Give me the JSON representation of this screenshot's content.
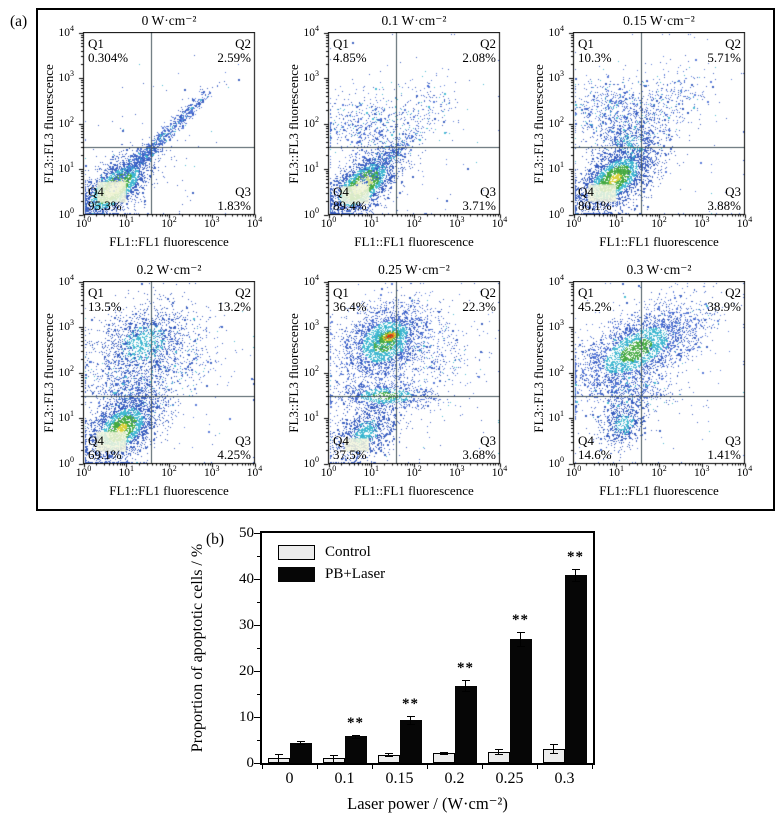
{
  "figure": {
    "panel_a_label": "(a)",
    "panel_b_label": "(b)"
  },
  "flow_axis": {
    "tick_exponents": [
      0,
      1,
      2,
      3,
      4
    ]
  },
  "colors": {
    "dot_blue": "#2f55bd",
    "dot_blue2": "#4e71d6",
    "dot_cyan": "#3ab6cf",
    "dot_green": "#43a83e",
    "dot_yellow": "#d9cf35",
    "dot_orange": "#e4821f",
    "dot_red": "#d63415",
    "core_pale": "#f2f5da",
    "core_pale_ring": "#cfe08c",
    "hotspot_fill": "#f3f6dd",
    "gate_line": "#46565e",
    "axis": "#000000",
    "bar_control": "#ececec",
    "bar_pb_laser": "#060606"
  },
  "chart_data": [
    {
      "type": "scatter",
      "title": "0 W·cm⁻²",
      "xlabel": "FL1::FL1 fluorescence",
      "ylabel": "FL3::FL3 fluorescence",
      "x_scale": "log",
      "y_scale": "log",
      "xlim": [
        1,
        10000
      ],
      "ylim": [
        1,
        10000
      ],
      "quadrant_gate": {
        "x": 38,
        "y": 30
      },
      "labels": [
        {
          "name": "Q1",
          "pct": "0.304%"
        },
        {
          "name": "Q2",
          "pct": "2.59%"
        },
        {
          "name": "Q3",
          "pct": "1.83%"
        },
        {
          "name": "Q4",
          "pct": "95.3%"
        }
      ],
      "density_clusters": [
        {
          "cx": 0.72,
          "cy": 0.6,
          "sx": 0.52,
          "sy": 0.22,
          "rot": 38,
          "n": 2600,
          "core": "pale"
        },
        {
          "cx": 1.45,
          "cy": 1.35,
          "sx": 0.72,
          "sy": 0.07,
          "rot": 41,
          "n": 800,
          "core": "blue"
        },
        {
          "cx": 2.45,
          "cy": 2.3,
          "sx": 0.4,
          "sy": 0.07,
          "rot": 40,
          "n": 220,
          "core": "blue"
        },
        {
          "cx": 1.2,
          "cy": 1.1,
          "sx": 1.2,
          "sy": 0.9,
          "rot": 35,
          "n": 130,
          "core": "blue"
        }
      ],
      "hotspot": {
        "x0": 0.32,
        "x1": 1.0,
        "y0": 0.26,
        "y1": 0.72
      }
    },
    {
      "type": "scatter",
      "title": "0.1 W·cm⁻²",
      "xlabel": "FL1::FL1 fluorescence",
      "ylabel": "FL3::FL3 fluorescence",
      "x_scale": "log",
      "y_scale": "log",
      "xlim": [
        1,
        10000
      ],
      "ylim": [
        1,
        10000
      ],
      "quadrant_gate": {
        "x": 38,
        "y": 30
      },
      "labels": [
        {
          "name": "Q1",
          "pct": "4.85%"
        },
        {
          "name": "Q2",
          "pct": "2.08%"
        },
        {
          "name": "Q3",
          "pct": "3.71%"
        },
        {
          "name": "Q4",
          "pct": "89.4%"
        }
      ],
      "density_clusters": [
        {
          "cx": 0.78,
          "cy": 0.66,
          "sx": 0.5,
          "sy": 0.24,
          "rot": 38,
          "n": 2500,
          "core": "pale"
        },
        {
          "cx": 1.35,
          "cy": 1.25,
          "sx": 0.6,
          "sy": 0.1,
          "rot": 40,
          "n": 500,
          "core": "blue"
        },
        {
          "cx": 0.95,
          "cy": 2.0,
          "sx": 0.33,
          "sy": 0.6,
          "rot": 95,
          "n": 550,
          "core": "blue"
        },
        {
          "cx": 2.3,
          "cy": 2.4,
          "sx": 0.45,
          "sy": 0.3,
          "rot": 35,
          "n": 130,
          "core": "blue"
        },
        {
          "cx": 1.5,
          "cy": 1.5,
          "sx": 1.3,
          "sy": 1.1,
          "rot": 30,
          "n": 150,
          "core": "blue"
        }
      ],
      "hotspot": {
        "x0": 0.3,
        "x1": 0.95,
        "y0": 0.24,
        "y1": 0.62
      }
    },
    {
      "type": "scatter",
      "title": "0.15 W·cm⁻²",
      "xlabel": "FL1::FL1 fluorescence",
      "ylabel": "FL3::FL3 fluorescence",
      "x_scale": "log",
      "y_scale": "log",
      "xlim": [
        1,
        10000
      ],
      "ylim": [
        1,
        10000
      ],
      "quadrant_gate": {
        "x": 38,
        "y": 30
      },
      "labels": [
        {
          "name": "Q1",
          "pct": "10.3%"
        },
        {
          "name": "Q2",
          "pct": "5.71%"
        },
        {
          "name": "Q3",
          "pct": "3.88%"
        },
        {
          "name": "Q4",
          "pct": "80.1%"
        }
      ],
      "density_clusters": [
        {
          "cx": 0.95,
          "cy": 0.8,
          "sx": 0.55,
          "sy": 0.28,
          "rot": 36,
          "n": 2700,
          "core": "yellow"
        },
        {
          "cx": 1.1,
          "cy": 2.2,
          "sx": 0.4,
          "sy": 0.6,
          "rot": 92,
          "n": 850,
          "core": "blue"
        },
        {
          "cx": 2.35,
          "cy": 2.5,
          "sx": 0.5,
          "sy": 0.35,
          "rot": 35,
          "n": 240,
          "core": "blue"
        },
        {
          "cx": 1.35,
          "cy": 1.55,
          "sx": 0.3,
          "sy": 0.4,
          "rot": 70,
          "n": 420,
          "core": "cyan"
        },
        {
          "cx": 1.6,
          "cy": 1.6,
          "sx": 1.3,
          "sy": 1.1,
          "rot": 30,
          "n": 150,
          "core": "blue"
        }
      ],
      "hotspot": {
        "x0": 0.34,
        "x1": 1.0,
        "y0": 0.28,
        "y1": 0.66
      }
    },
    {
      "type": "scatter",
      "title": "0.2 W·cm⁻²",
      "xlabel": "FL1::FL1 fluorescence",
      "ylabel": "FL3::FL3 fluorescence",
      "x_scale": "log",
      "y_scale": "log",
      "xlim": [
        1,
        10000
      ],
      "ylim": [
        1,
        10000
      ],
      "quadrant_gate": {
        "x": 38,
        "y": 30
      },
      "labels": [
        {
          "name": "Q1",
          "pct": "13.5%"
        },
        {
          "name": "Q2",
          "pct": "13.2%"
        },
        {
          "name": "Q3",
          "pct": "4.25%"
        },
        {
          "name": "Q4",
          "pct": "69.1%"
        }
      ],
      "density_clusters": [
        {
          "cx": 0.88,
          "cy": 0.78,
          "sx": 0.5,
          "sy": 0.3,
          "rot": 37,
          "n": 2500,
          "core": "yellow"
        },
        {
          "cx": 1.4,
          "cy": 2.65,
          "sx": 0.6,
          "sy": 0.42,
          "rot": 22,
          "n": 1600,
          "core": "cyan"
        },
        {
          "cx": 1.1,
          "cy": 1.6,
          "sx": 0.32,
          "sy": 0.5,
          "rot": 80,
          "n": 650,
          "core": "blue"
        },
        {
          "cx": 2.45,
          "cy": 2.3,
          "sx": 0.5,
          "sy": 0.4,
          "rot": 30,
          "n": 200,
          "core": "blue"
        },
        {
          "cx": 1.6,
          "cy": 1.6,
          "sx": 1.3,
          "sy": 1.1,
          "rot": 30,
          "n": 160,
          "core": "blue"
        }
      ],
      "hotspot": {
        "x0": 0.3,
        "x1": 1.0,
        "y0": 0.26,
        "y1": 0.7
      }
    },
    {
      "type": "scatter",
      "title": "0.25 W·cm⁻²",
      "xlabel": "FL1::FL1 fluorescence",
      "ylabel": "FL3::FL3 fluorescence",
      "x_scale": "log",
      "y_scale": "log",
      "xlim": [
        1,
        10000
      ],
      "ylim": [
        1,
        10000
      ],
      "quadrant_gate": {
        "x": 38,
        "y": 30
      },
      "labels": [
        {
          "name": "Q1",
          "pct": "36.4%"
        },
        {
          "name": "Q2",
          "pct": "22.3%"
        },
        {
          "name": "Q3",
          "pct": "3.68%"
        },
        {
          "name": "Q4",
          "pct": "37.5%"
        }
      ],
      "density_clusters": [
        {
          "cx": 1.3,
          "cy": 2.68,
          "sx": 0.55,
          "sy": 0.4,
          "rot": 28,
          "n": 2700,
          "core": "green"
        },
        {
          "cx": 1.42,
          "cy": 2.8,
          "sx": 0.2,
          "sy": 0.09,
          "rot": 20,
          "n": 420,
          "core": "red"
        },
        {
          "cx": 0.85,
          "cy": 0.68,
          "sx": 0.42,
          "sy": 0.26,
          "rot": 38,
          "n": 1100,
          "core": "cyan"
        },
        {
          "cx": 1.33,
          "cy": 1.5,
          "sx": 0.16,
          "sy": 0.6,
          "rot": 90,
          "n": 800,
          "core": "green"
        },
        {
          "cx": 2.55,
          "cy": 2.4,
          "sx": 0.55,
          "sy": 0.45,
          "rot": 30,
          "n": 280,
          "core": "blue"
        },
        {
          "cx": 1.7,
          "cy": 1.7,
          "sx": 1.3,
          "sy": 1.1,
          "rot": 30,
          "n": 170,
          "core": "blue"
        }
      ],
      "hotspot": {
        "x0": 0.38,
        "x1": 0.95,
        "y0": 0.26,
        "y1": 0.55
      }
    },
    {
      "type": "scatter",
      "title": "0.3 W·cm⁻²",
      "xlabel": "FL1::FL1 fluorescence",
      "ylabel": "FL3::FL3 fluorescence",
      "x_scale": "log",
      "y_scale": "log",
      "xlim": [
        1,
        10000
      ],
      "ylim": [
        1,
        10000
      ],
      "quadrant_gate": {
        "x": 38,
        "y": 30
      },
      "labels": [
        {
          "name": "Q1",
          "pct": "45.2%"
        },
        {
          "name": "Q2",
          "pct": "38.9%"
        },
        {
          "name": "Q3",
          "pct": "1.41%"
        },
        {
          "name": "Q4",
          "pct": "14.6%"
        }
      ],
      "density_clusters": [
        {
          "cx": 1.45,
          "cy": 2.5,
          "sx": 0.82,
          "sy": 0.36,
          "rot": 28,
          "n": 3100,
          "core": "green"
        },
        {
          "cx": 1.15,
          "cy": 0.88,
          "sx": 0.3,
          "sy": 0.24,
          "rot": 38,
          "n": 650,
          "core": "cyan"
        },
        {
          "cx": 1.4,
          "cy": 1.6,
          "sx": 0.18,
          "sy": 0.5,
          "rot": 88,
          "n": 420,
          "core": "blue"
        },
        {
          "cx": 2.7,
          "cy": 2.95,
          "sx": 0.4,
          "sy": 0.25,
          "rot": 30,
          "n": 140,
          "core": "blue"
        },
        {
          "cx": 1.7,
          "cy": 1.8,
          "sx": 1.2,
          "sy": 1.0,
          "rot": 30,
          "n": 150,
          "core": "blue"
        }
      ],
      "hotspot": null
    },
    {
      "type": "bar",
      "categories": [
        "0",
        "0.1",
        "0.15",
        "0.2",
        "0.25",
        "0.3"
      ],
      "series": [
        {
          "name": "Control",
          "color": "#ececec",
          "values": [
            1.0,
            1.0,
            1.8,
            2.2,
            2.5,
            3.1
          ],
          "errors": [
            0.9,
            0.8,
            0.3,
            0.3,
            0.5,
            1.0
          ]
        },
        {
          "name": "PB+Laser",
          "color": "#060606",
          "values": [
            4.4,
            5.8,
            9.3,
            16.8,
            26.9,
            40.8
          ],
          "errors": [
            0.3,
            0.3,
            0.9,
            1.2,
            1.5,
            1.3
          ]
        }
      ],
      "significance": [
        "",
        "**",
        "**",
        "**",
        "**",
        "**"
      ],
      "xlabel": "Laser power / (W·cm⁻²)",
      "ylabel": "Proportion of apoptotic cells / %",
      "ylim": [
        0,
        50
      ],
      "ytick_step": 10,
      "ytick_minor_step": 5,
      "legend_position": "top-left",
      "grid": false
    }
  ]
}
